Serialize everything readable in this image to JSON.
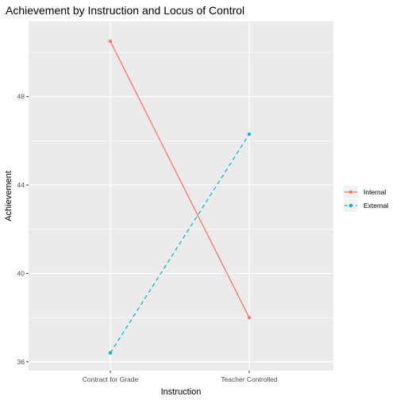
{
  "chart_data": {
    "type": "line",
    "title": "Achievement by Instruction and Locus of Control",
    "xlabel": "Instruction",
    "ylabel": "Achievement",
    "categories": [
      "Contract for Grade",
      "Teacher Controlled"
    ],
    "ylim": [
      35.6,
      51.4
    ],
    "yticks": [
      36,
      40,
      44,
      48
    ],
    "grid": true,
    "legend_position": "right",
    "series": [
      {
        "name": "Internal",
        "values": [
          50.5,
          38.0
        ],
        "color": "#F8766D",
        "linetype": "solid"
      },
      {
        "name": "External",
        "values": [
          36.4,
          46.3
        ],
        "color": "#00BFC4",
        "linetype": "dashed"
      }
    ],
    "panel_background": "#EBEBEB",
    "grid_color": "#FFFFFF"
  }
}
